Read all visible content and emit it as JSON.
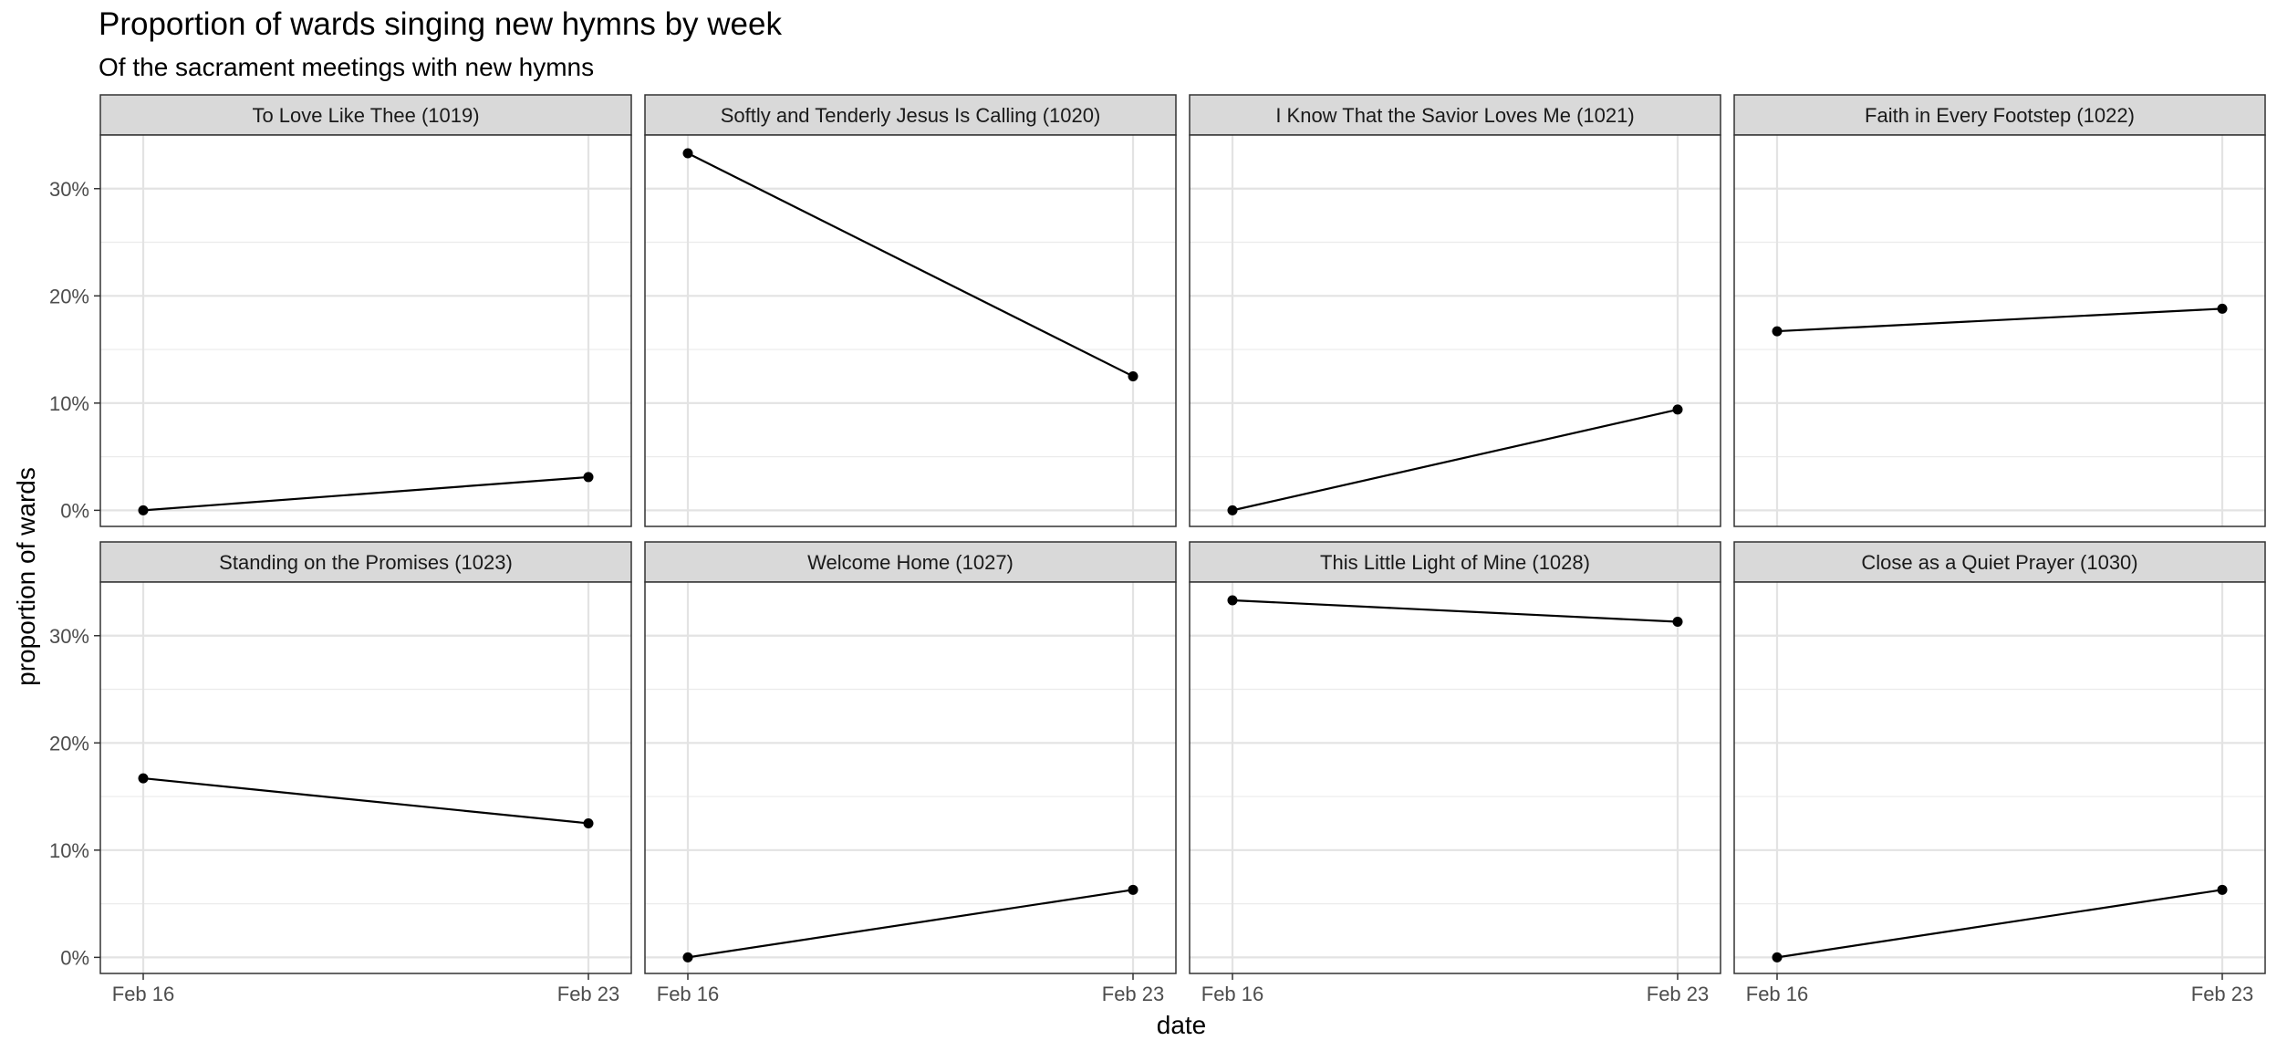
{
  "chart_data": {
    "type": "line",
    "title": "Proportion of wards singing new hymns by week",
    "subtitle": "Of the sacrament meetings with new hymns",
    "xlabel": "date",
    "ylabel": "proportion of wards",
    "x": [
      "Feb 16",
      "Feb 23"
    ],
    "y_ticks": [
      "0%",
      "10%",
      "20%",
      "30%"
    ],
    "ylim": [
      -0.015,
      0.35
    ],
    "grid": true,
    "facets": [
      {
        "name": "To Love Like Thee (1019)",
        "values": [
          0.0,
          0.031
        ]
      },
      {
        "name": "Softly and Tenderly Jesus Is Calling (1020)",
        "values": [
          0.333,
          0.125
        ]
      },
      {
        "name": "I Know That the Savior Loves Me (1021)",
        "values": [
          0.0,
          0.094
        ]
      },
      {
        "name": "Faith in Every Footstep (1022)",
        "values": [
          0.167,
          0.188
        ]
      },
      {
        "name": "Standing on the Promises (1023)",
        "values": [
          0.167,
          0.125
        ]
      },
      {
        "name": "Welcome Home (1027)",
        "values": [
          0.0,
          0.063
        ]
      },
      {
        "name": "This Little Light of Mine (1028)",
        "values": [
          0.333,
          0.313
        ]
      },
      {
        "name": "Close as a Quiet Prayer (1030)",
        "values": [
          0.0,
          0.063
        ]
      }
    ]
  }
}
